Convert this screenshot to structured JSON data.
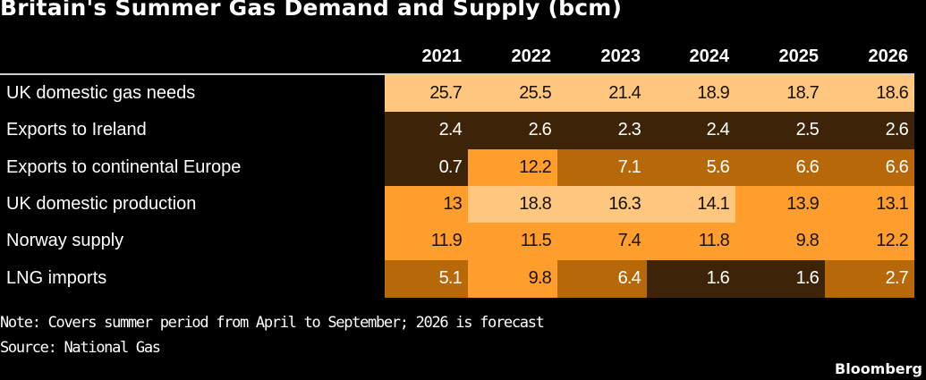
{
  "title": "Britain's Summer Gas Demand and Supply (bcm)",
  "note": "Note: Covers summer period from April to September; 2026 is forecast",
  "source": "Source: National Gas",
  "logo": "Bloomberg",
  "colors": {
    "background": "#000000",
    "level_pale": "#ffc67d",
    "level_orange": "#ff9e2c",
    "level_mid": "#b7690a",
    "level_dark": "#3d2409",
    "text_dark": "#1a1208",
    "text_light": "#ffffff"
  },
  "chart_data": {
    "type": "table",
    "title": "Britain's Summer Gas Demand and Supply (bcm)",
    "columns": [
      "2021",
      "2022",
      "2023",
      "2024",
      "2025",
      "2026"
    ],
    "rows": [
      {
        "label": "UK domestic gas needs",
        "values": [
          "25.7",
          "25.5",
          "21.4",
          "18.9",
          "18.7",
          "18.6"
        ],
        "levels": [
          "pale",
          "pale",
          "pale",
          "pale",
          "pale",
          "pale"
        ]
      },
      {
        "label": "Exports to Ireland",
        "values": [
          "2.4",
          "2.6",
          "2.3",
          "2.4",
          "2.5",
          "2.6"
        ],
        "levels": [
          "dark",
          "dark",
          "dark",
          "dark",
          "dark",
          "dark"
        ]
      },
      {
        "label": "Exports to continental Europe",
        "values": [
          "0.7",
          "12.2",
          "7.1",
          "5.6",
          "6.6",
          "6.6"
        ],
        "levels": [
          "dark",
          "orange",
          "mid",
          "mid",
          "mid",
          "mid"
        ]
      },
      {
        "label": "UK domestic production",
        "values": [
          "13",
          "18.8",
          "16.3",
          "14.1",
          "13.9",
          "13.1"
        ],
        "levels": [
          "orange",
          "pale",
          "pale",
          "pale",
          "orange",
          "orange"
        ]
      },
      {
        "label": "Norway supply",
        "values": [
          "11.9",
          "11.5",
          "7.4",
          "11.8",
          "9.8",
          "12.2"
        ],
        "levels": [
          "orange",
          "orange",
          "orange",
          "orange",
          "orange",
          "orange"
        ]
      },
      {
        "label": "LNG imports",
        "values": [
          "5.1",
          "9.8",
          "6.4",
          "1.6",
          "1.6",
          "2.7"
        ],
        "levels": [
          "mid",
          "orange",
          "mid",
          "dark",
          "dark",
          "mid"
        ]
      }
    ],
    "unit": "bcm",
    "note": "Covers summer period from April to September; 2026 is forecast",
    "source": "National Gas"
  }
}
